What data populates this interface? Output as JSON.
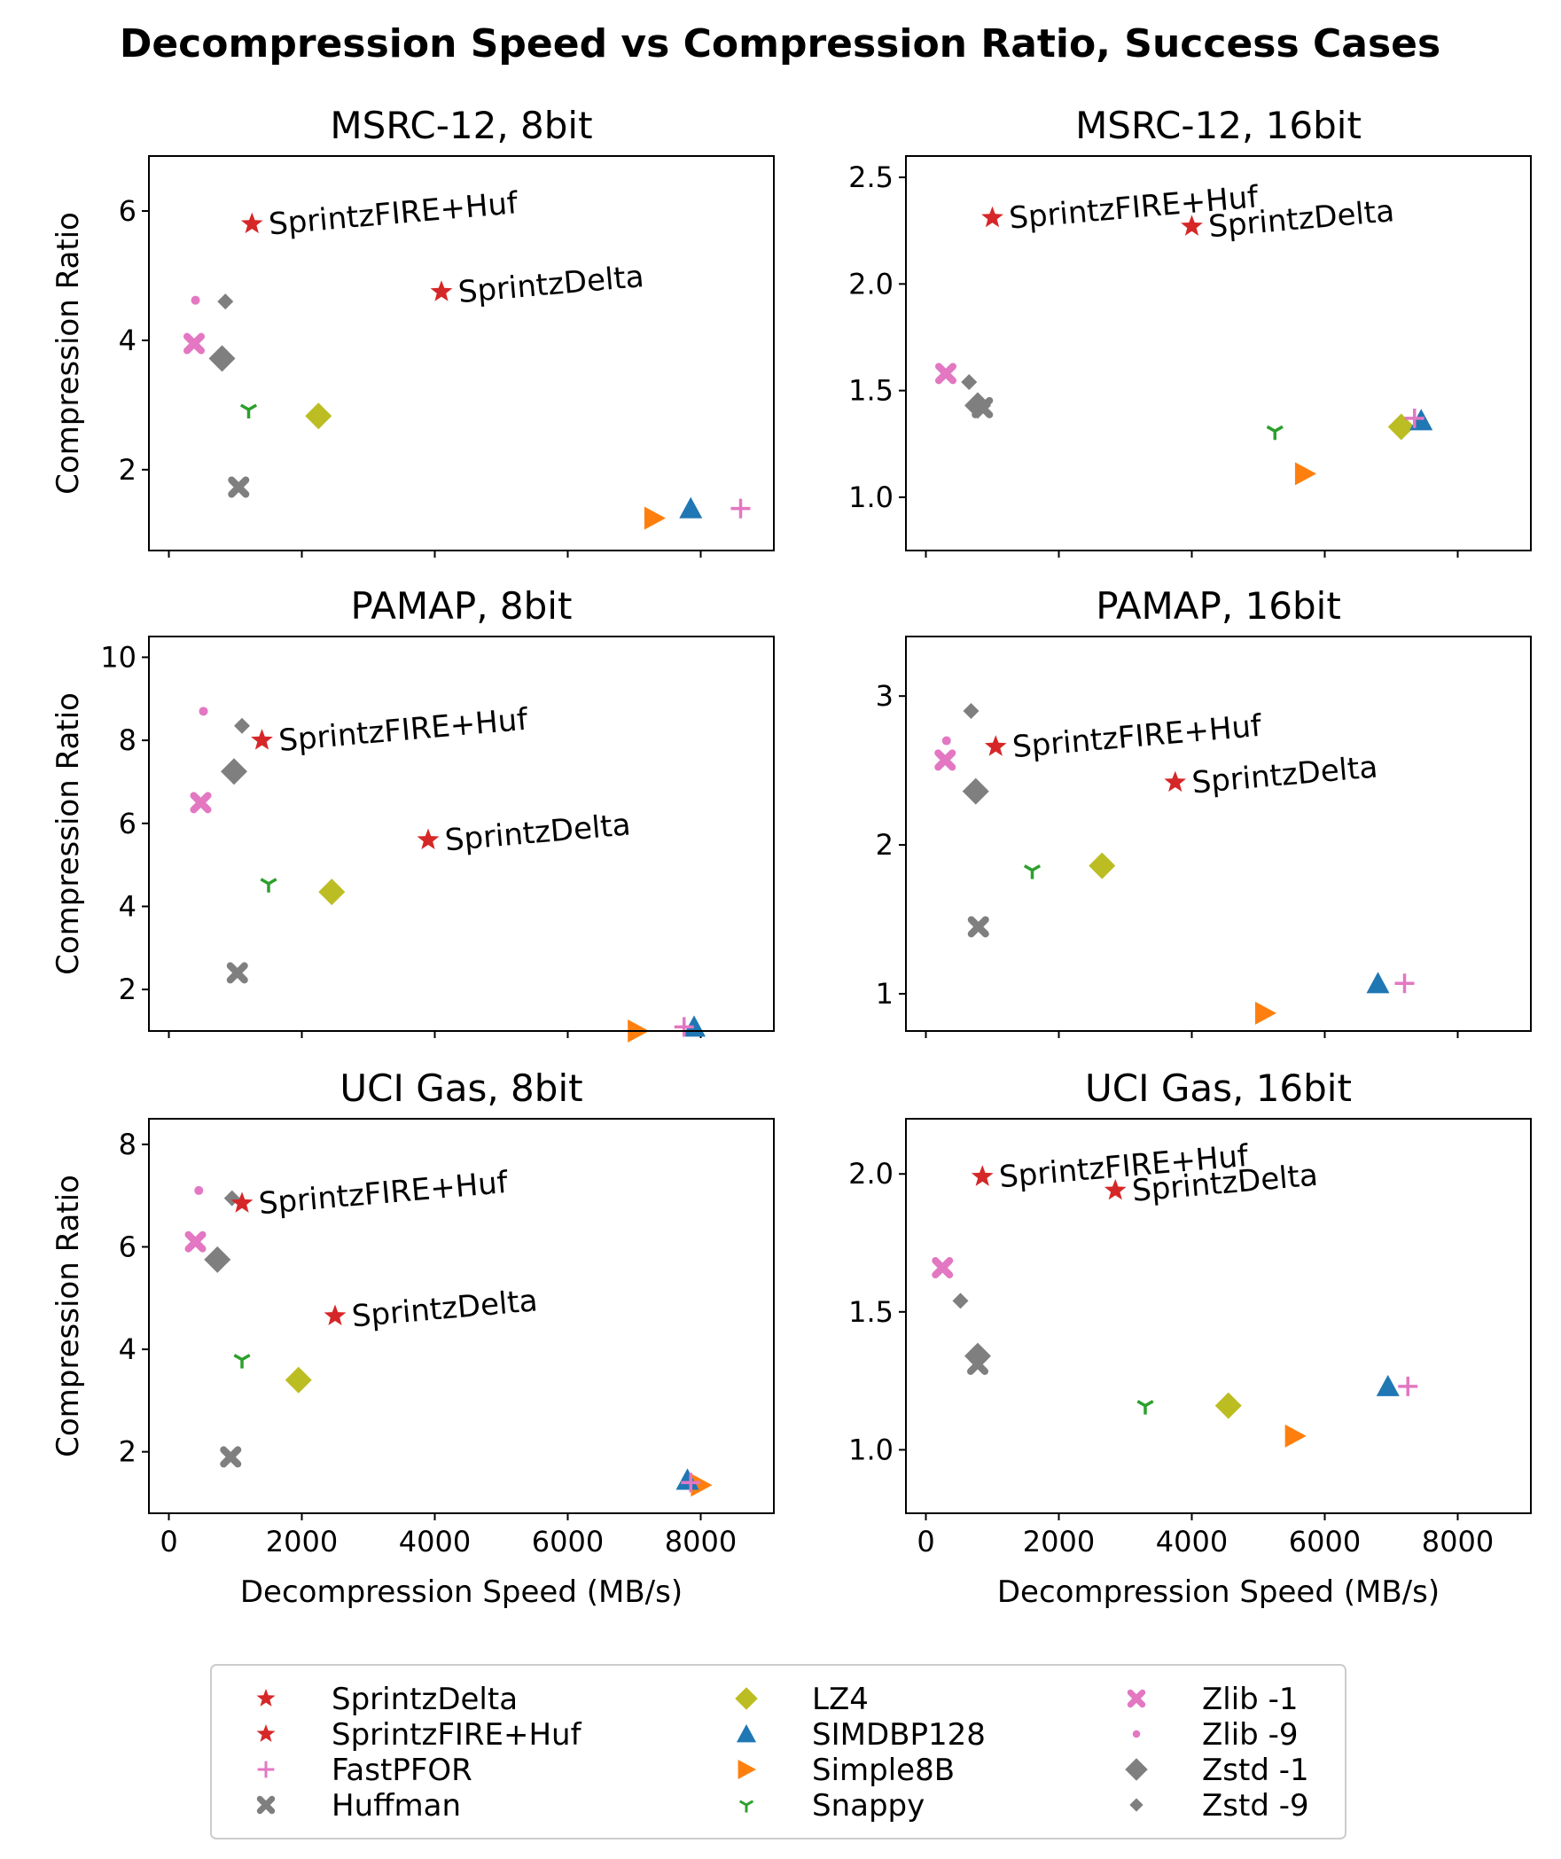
{
  "chart_data": {
    "type": "scatter",
    "title": "Decompression Speed vs Compression Ratio, Success Cases",
    "xlabel": "Decompression Speed (MB/s)",
    "ylabel": "Compression Ratio",
    "xlim": [
      -300,
      9100
    ],
    "xticks": [
      0,
      2000,
      4000,
      6000,
      8000
    ],
    "xtick_labels": [
      "0",
      "2000",
      "4000",
      "6000",
      "8000"
    ],
    "legend": {
      "placement": "bottom-center",
      "columns": [
        [
          "SprintzDelta",
          "SprintzFIRE+Huf",
          "FastPFOR",
          "Huffman"
        ],
        [
          "LZ4",
          "SIMDBP128",
          "Simple8B",
          "Snappy"
        ],
        [
          "Zlib -1",
          "Zlib -9",
          "Zstd -1",
          "Zstd -9"
        ]
      ]
    },
    "series_styles": {
      "SprintzDelta": {
        "marker": "star",
        "color": "#d62728"
      },
      "SprintzFIRE+Huf": {
        "marker": "star",
        "color": "#d62728"
      },
      "FastPFOR": {
        "marker": "plus",
        "color": "#e377c2"
      },
      "Huffman": {
        "marker": "x",
        "color": "#7f7f7f"
      },
      "LZ4": {
        "marker": "diamond",
        "color": "#bcbd22"
      },
      "SIMDBP128": {
        "marker": "triangle-up",
        "color": "#1f77b4"
      },
      "Simple8B": {
        "marker": "triangle-right",
        "color": "#ff7f0e"
      },
      "Snappy": {
        "marker": "tri-down",
        "color": "#2ca02c"
      },
      "Zlib -1": {
        "marker": "x",
        "color": "#e377c2"
      },
      "Zlib -9": {
        "marker": "dot",
        "color": "#e377c2"
      },
      "Zstd -1": {
        "marker": "diamond",
        "color": "#7f7f7f"
      },
      "Zstd -9": {
        "marker": "diamond-small",
        "color": "#7f7f7f"
      }
    },
    "panels": [
      {
        "title": "MSRC-12, 8bit",
        "ylim": [
          0.75,
          6.85
        ],
        "yticks": [
          2,
          4,
          6
        ],
        "ytick_labels": [
          "2",
          "4",
          "6"
        ],
        "points": [
          {
            "name": "SprintzDelta",
            "x": 4100,
            "y": 4.75
          },
          {
            "name": "SprintzFIRE+Huf",
            "x": 1250,
            "y": 5.8
          },
          {
            "name": "FastPFOR",
            "x": 8600,
            "y": 1.4
          },
          {
            "name": "Huffman",
            "x": 1050,
            "y": 1.73
          },
          {
            "name": "LZ4",
            "x": 2250,
            "y": 2.83
          },
          {
            "name": "SIMDBP128",
            "x": 7850,
            "y": 1.4
          },
          {
            "name": "Simple8B",
            "x": 7300,
            "y": 1.25
          },
          {
            "name": "Snappy",
            "x": 1200,
            "y": 2.93
          },
          {
            "name": "Zlib -1",
            "x": 380,
            "y": 3.95
          },
          {
            "name": "Zlib -9",
            "x": 400,
            "y": 4.62
          },
          {
            "name": "Zstd -1",
            "x": 800,
            "y": 3.72
          },
          {
            "name": "Zstd -9",
            "x": 850,
            "y": 4.6
          }
        ]
      },
      {
        "title": "MSRC-12, 16bit",
        "ylim": [
          0.75,
          2.6
        ],
        "yticks": [
          1.0,
          1.5,
          2.0,
          2.5
        ],
        "ytick_labels": [
          "1.0",
          "1.5",
          "2.0",
          "2.5"
        ],
        "points": [
          {
            "name": "SprintzDelta",
            "x": 4000,
            "y": 2.27
          },
          {
            "name": "SprintzFIRE+Huf",
            "x": 1000,
            "y": 2.31
          },
          {
            "name": "FastPFOR",
            "x": 7350,
            "y": 1.37
          },
          {
            "name": "Huffman",
            "x": 850,
            "y": 1.42
          },
          {
            "name": "LZ4",
            "x": 7150,
            "y": 1.33
          },
          {
            "name": "SIMDBP128",
            "x": 7450,
            "y": 1.36
          },
          {
            "name": "Simple8B",
            "x": 5700,
            "y": 1.11
          },
          {
            "name": "Snappy",
            "x": 5250,
            "y": 1.31
          },
          {
            "name": "Zlib -1",
            "x": 300,
            "y": 1.58
          },
          {
            "name": "Zlib -9",
            "x": 300,
            "y": 1.58
          },
          {
            "name": "Zstd -1",
            "x": 780,
            "y": 1.43
          },
          {
            "name": "Zstd -9",
            "x": 650,
            "y": 1.54
          }
        ]
      },
      {
        "title": "PAMAP, 8bit",
        "ylim": [
          1.0,
          10.5
        ],
        "yticks": [
          2,
          4,
          6,
          8,
          10
        ],
        "ytick_labels": [
          "2",
          "4",
          "6",
          "8",
          "10"
        ],
        "points": [
          {
            "name": "SprintzDelta",
            "x": 3900,
            "y": 5.6
          },
          {
            "name": "SprintzFIRE+Huf",
            "x": 1400,
            "y": 8.0
          },
          {
            "name": "FastPFOR",
            "x": 7750,
            "y": 1.1
          },
          {
            "name": "Huffman",
            "x": 1030,
            "y": 2.4
          },
          {
            "name": "LZ4",
            "x": 2450,
            "y": 4.35
          },
          {
            "name": "SIMDBP128",
            "x": 7900,
            "y": 1.1
          },
          {
            "name": "Simple8B",
            "x": 7050,
            "y": 1.0
          },
          {
            "name": "Snappy",
            "x": 1500,
            "y": 4.55
          },
          {
            "name": "Zlib -1",
            "x": 480,
            "y": 6.5
          },
          {
            "name": "Zlib -9",
            "x": 520,
            "y": 8.7
          },
          {
            "name": "Zstd -1",
            "x": 980,
            "y": 7.25
          },
          {
            "name": "Zstd -9",
            "x": 1100,
            "y": 8.35
          }
        ]
      },
      {
        "title": "PAMAP, 16bit",
        "ylim": [
          0.75,
          3.4
        ],
        "yticks": [
          1,
          2,
          3
        ],
        "ytick_labels": [
          "1",
          "2",
          "3"
        ],
        "points": [
          {
            "name": "SprintzDelta",
            "x": 3750,
            "y": 2.42
          },
          {
            "name": "SprintzFIRE+Huf",
            "x": 1050,
            "y": 2.66
          },
          {
            "name": "FastPFOR",
            "x": 7200,
            "y": 1.07
          },
          {
            "name": "Huffman",
            "x": 790,
            "y": 1.45
          },
          {
            "name": "LZ4",
            "x": 2650,
            "y": 1.86
          },
          {
            "name": "SIMDBP128",
            "x": 6800,
            "y": 1.07
          },
          {
            "name": "Simple8B",
            "x": 5100,
            "y": 0.87
          },
          {
            "name": "Snappy",
            "x": 1600,
            "y": 1.83
          },
          {
            "name": "Zlib -1",
            "x": 290,
            "y": 2.57
          },
          {
            "name": "Zlib -9",
            "x": 310,
            "y": 2.7
          },
          {
            "name": "Zstd -1",
            "x": 750,
            "y": 2.36
          },
          {
            "name": "Zstd -9",
            "x": 680,
            "y": 2.9
          }
        ]
      },
      {
        "title": "UCI Gas, 8bit",
        "ylim": [
          0.8,
          8.5
        ],
        "yticks": [
          2,
          4,
          6,
          8
        ],
        "ytick_labels": [
          "2",
          "4",
          "6",
          "8"
        ],
        "points": [
          {
            "name": "SprintzDelta",
            "x": 2500,
            "y": 4.65
          },
          {
            "name": "SprintzFIRE+Huf",
            "x": 1100,
            "y": 6.85
          },
          {
            "name": "FastPFOR",
            "x": 7850,
            "y": 1.4
          },
          {
            "name": "Huffman",
            "x": 930,
            "y": 1.9
          },
          {
            "name": "LZ4",
            "x": 1950,
            "y": 3.4
          },
          {
            "name": "SIMDBP128",
            "x": 7800,
            "y": 1.45
          },
          {
            "name": "Simple8B",
            "x": 8000,
            "y": 1.35
          },
          {
            "name": "Snappy",
            "x": 1100,
            "y": 3.8
          },
          {
            "name": "Zlib -1",
            "x": 400,
            "y": 6.1
          },
          {
            "name": "Zlib -9",
            "x": 450,
            "y": 7.1
          },
          {
            "name": "Zstd -1",
            "x": 730,
            "y": 5.75
          },
          {
            "name": "Zstd -9",
            "x": 950,
            "y": 6.95
          }
        ]
      },
      {
        "title": "UCI Gas, 16bit",
        "ylim": [
          0.77,
          2.2
        ],
        "yticks": [
          1.0,
          1.5,
          2.0
        ],
        "ytick_labels": [
          "1.0",
          "1.5",
          "2.0"
        ],
        "points": [
          {
            "name": "SprintzDelta",
            "x": 2850,
            "y": 1.94
          },
          {
            "name": "SprintzFIRE+Huf",
            "x": 850,
            "y": 1.99
          },
          {
            "name": "FastPFOR",
            "x": 7250,
            "y": 1.23
          },
          {
            "name": "Huffman",
            "x": 780,
            "y": 1.31
          },
          {
            "name": "LZ4",
            "x": 4550,
            "y": 1.16
          },
          {
            "name": "SIMDBP128",
            "x": 6950,
            "y": 1.23
          },
          {
            "name": "Simple8B",
            "x": 5550,
            "y": 1.05
          },
          {
            "name": "Snappy",
            "x": 3300,
            "y": 1.16
          },
          {
            "name": "Zlib -1",
            "x": 250,
            "y": 1.66
          },
          {
            "name": "Zlib -9",
            "x": 250,
            "y": 1.66
          },
          {
            "name": "Zstd -1",
            "x": 780,
            "y": 1.34
          },
          {
            "name": "Zstd -9",
            "x": 520,
            "y": 1.54
          }
        ]
      }
    ]
  }
}
